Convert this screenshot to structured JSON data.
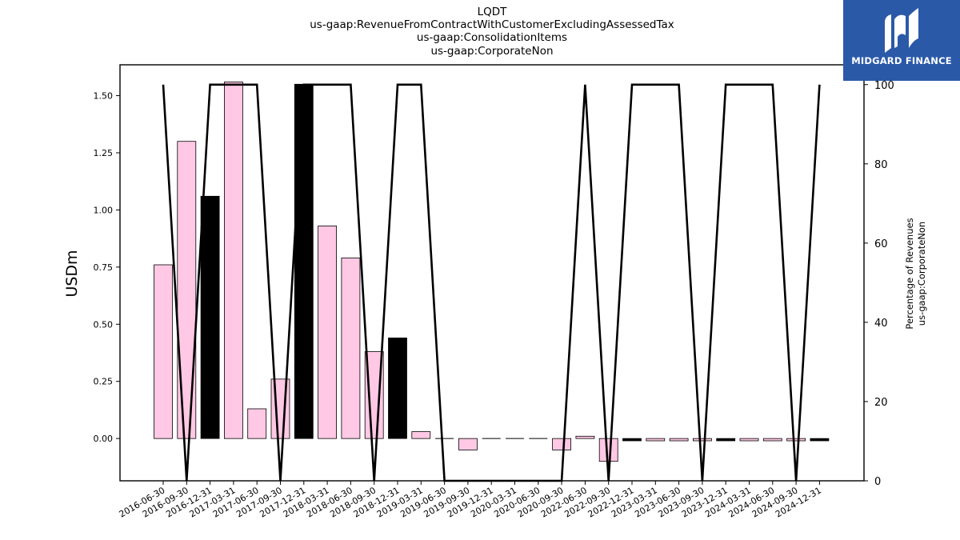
{
  "titles": [
    "LQDT",
    "us-gaap:RevenueFromContractWithCustomerExcludingAssessedTax",
    "us-gaap:ConsolidationItems",
    "us-gaap:CorporateNon"
  ],
  "logo": {
    "text": "MIDGARD FINANCE",
    "icon": "midgard-logo-icon"
  },
  "chart_data": {
    "type": "bar",
    "ylabel": "USDm",
    "y2label": [
      "Percentage of Revenues",
      "us-gaap:CorporateNon"
    ],
    "ylim": [
      -0.185,
      1.635
    ],
    "y2lim": [
      0,
      105
    ],
    "yticks": [
      0.0,
      0.25,
      0.5,
      0.75,
      1.0,
      1.25,
      1.5
    ],
    "ytick_labels": [
      "0.00",
      "0.25",
      "0.50",
      "0.75",
      "1.00",
      "1.25",
      "1.50"
    ],
    "y2ticks": [
      0,
      20,
      40,
      60,
      80,
      100
    ],
    "y2tick_labels": [
      "0",
      "20",
      "40",
      "60",
      "80",
      "100"
    ],
    "categories": [
      "2016-06-30",
      "2016-09-30",
      "2016-12-31",
      "2017-03-31",
      "2017-06-30",
      "2017-09-30",
      "2017-12-31",
      "2018-03-31",
      "2018-06-30",
      "2018-09-30",
      "2018-12-31",
      "2019-03-31",
      "2019-06-30",
      "2019-09-30",
      "2019-12-31",
      "2020-03-31",
      "2020-06-30",
      "2020-09-30",
      "2022-06-30",
      "2022-09-30",
      "2022-12-31",
      "2023-03-31",
      "2023-06-30",
      "2023-09-30",
      "2023-12-31",
      "2024-03-31",
      "2024-06-30",
      "2024-09-30",
      "2024-12-31"
    ],
    "values": [
      0.76,
      1.3,
      1.06,
      1.56,
      0.13,
      0.26,
      1.55,
      0.93,
      0.79,
      0.38,
      0.44,
      0.03,
      0.0,
      -0.05,
      0.0,
      0.0,
      0.0,
      -0.05,
      0.01,
      -0.1,
      -0.01,
      -0.01,
      -0.01,
      -0.01,
      -0.01,
      -0.01,
      -0.01,
      -0.01,
      -0.01
    ],
    "bar_colors": [
      "#ffc8e4",
      "#ffc8e4",
      "#000000",
      "#ffc8e4",
      "#ffc8e4",
      "#ffc8e4",
      "#000000",
      "#ffc8e4",
      "#ffc8e4",
      "#ffc8e4",
      "#000000",
      "#ffc8e4",
      "#ffc8e4",
      "#ffc8e4",
      "#ffc8e4",
      "#ffc8e4",
      "#ffc8e4",
      "#ffc8e4",
      "#ffc8e4",
      "#ffc8e4",
      "#000000",
      "#ffc8e4",
      "#ffc8e4",
      "#ffc8e4",
      "#000000",
      "#ffc8e4",
      "#ffc8e4",
      "#ffc8e4",
      "#000000"
    ],
    "percentage": [
      100,
      0,
      100,
      100,
      100,
      0,
      100,
      100,
      100,
      0,
      100,
      100,
      0,
      0,
      0,
      0,
      0,
      0,
      100,
      0,
      100,
      100,
      100,
      0,
      100,
      100,
      100,
      0,
      100
    ],
    "colors": {
      "pink": "#ffc8e4",
      "black": "#000000",
      "line": "#000000",
      "logo_bg": "#2a59a8"
    }
  }
}
